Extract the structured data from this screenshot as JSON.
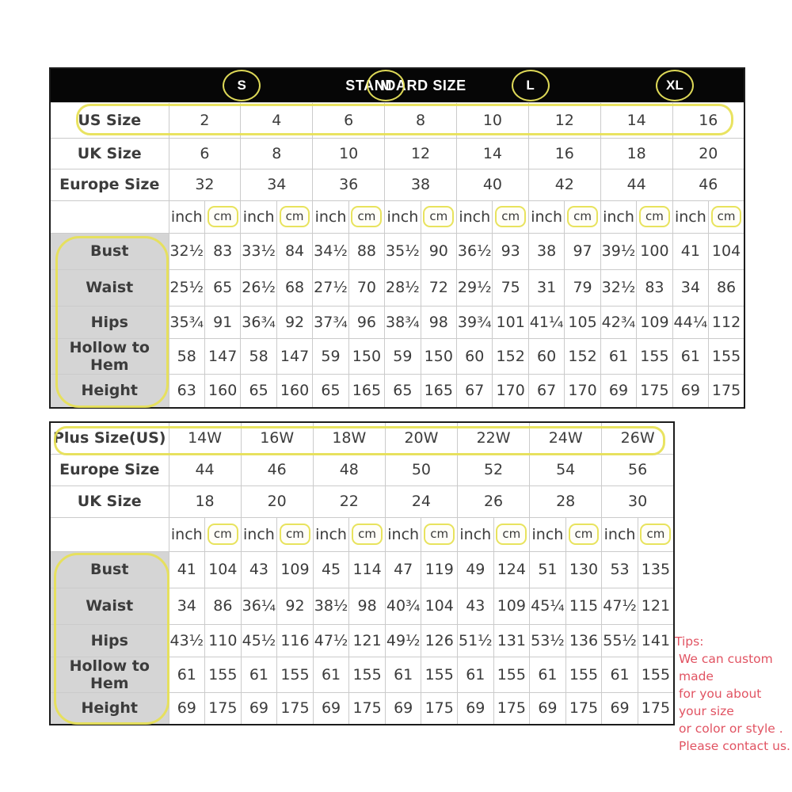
{
  "colors": {
    "highlight_yellow": "#e7e154",
    "header_bg": "#060606",
    "label_gray": "#d5d5d5",
    "tips_red": "#e15362"
  },
  "standard_table": {
    "title": "STANDARD SIZE",
    "size_groups": [
      "S",
      "M",
      "L",
      "XL"
    ],
    "unit_labels": {
      "inch": "inch",
      "cm": "cm"
    },
    "size_rows": [
      {
        "label": "US Size",
        "highlight": true,
        "values": [
          "2",
          "4",
          "6",
          "8",
          "10",
          "12",
          "14",
          "16"
        ]
      },
      {
        "label": "UK Size",
        "highlight": false,
        "values": [
          "6",
          "8",
          "10",
          "12",
          "14",
          "16",
          "18",
          "20"
        ]
      },
      {
        "label": "Europe Size",
        "highlight": false,
        "values": [
          "32",
          "34",
          "36",
          "38",
          "40",
          "42",
          "44",
          "46"
        ]
      }
    ],
    "measure_rows": [
      {
        "label": "Bust",
        "values": [
          "32½",
          "83",
          "33½",
          "84",
          "34½",
          "88",
          "35½",
          "90",
          "36½",
          "93",
          "38",
          "97",
          "39½",
          "100",
          "41",
          "104"
        ]
      },
      {
        "label": "Waist",
        "values": [
          "25½",
          "65",
          "26½",
          "68",
          "27½",
          "70",
          "28½",
          "72",
          "29½",
          "75",
          "31",
          "79",
          "32½",
          "83",
          "34",
          "86"
        ]
      },
      {
        "label": "Hips",
        "values": [
          "35¾",
          "91",
          "36¾",
          "92",
          "37¾",
          "96",
          "38¾",
          "98",
          "39¾",
          "101",
          "41¼",
          "105",
          "42¾",
          "109",
          "44¼",
          "112"
        ]
      },
      {
        "label": "Hollow to Hem",
        "values": [
          "58",
          "147",
          "58",
          "147",
          "59",
          "150",
          "59",
          "150",
          "60",
          "152",
          "60",
          "152",
          "61",
          "155",
          "61",
          "155"
        ]
      },
      {
        "label": "Height",
        "values": [
          "63",
          "160",
          "65",
          "160",
          "65",
          "165",
          "65",
          "165",
          "67",
          "170",
          "67",
          "170",
          "69",
          "175",
          "69",
          "175"
        ]
      }
    ]
  },
  "plus_table": {
    "unit_labels": {
      "inch": "inch",
      "cm": "cm"
    },
    "size_rows": [
      {
        "label": "Plus Size(US)",
        "highlight": true,
        "values": [
          "14W",
          "16W",
          "18W",
          "20W",
          "22W",
          "24W",
          "26W"
        ]
      },
      {
        "label": "Europe Size",
        "highlight": false,
        "values": [
          "44",
          "46",
          "48",
          "50",
          "52",
          "54",
          "56"
        ]
      },
      {
        "label": "UK Size",
        "highlight": false,
        "values": [
          "18",
          "20",
          "22",
          "24",
          "26",
          "28",
          "30"
        ]
      }
    ],
    "measure_rows": [
      {
        "label": "Bust",
        "values": [
          "41",
          "104",
          "43",
          "109",
          "45",
          "114",
          "47",
          "119",
          "49",
          "124",
          "51",
          "130",
          "53",
          "135"
        ]
      },
      {
        "label": "Waist",
        "values": [
          "34",
          "86",
          "36¼",
          "92",
          "38½",
          "98",
          "40¾",
          "104",
          "43",
          "109",
          "45¼",
          "115",
          "47½",
          "121"
        ]
      },
      {
        "label": "Hips",
        "values": [
          "43½",
          "110",
          "45½",
          "116",
          "47½",
          "121",
          "49½",
          "126",
          "51½",
          "131",
          "53½",
          "136",
          "55½",
          "141"
        ]
      },
      {
        "label": "Hollow to Hem",
        "values": [
          "61",
          "155",
          "61",
          "155",
          "61",
          "155",
          "61",
          "155",
          "61",
          "155",
          "61",
          "155",
          "61",
          "155"
        ]
      },
      {
        "label": "Height",
        "values": [
          "69",
          "175",
          "69",
          "175",
          "69",
          "175",
          "69",
          "175",
          "69",
          "175",
          "69",
          "175",
          "69",
          "175"
        ]
      }
    ]
  },
  "tips": {
    "title": "Tips:",
    "lines": [
      "We can custom made",
      "for you about your size",
      "or color or style .",
      "Please contact us."
    ]
  }
}
